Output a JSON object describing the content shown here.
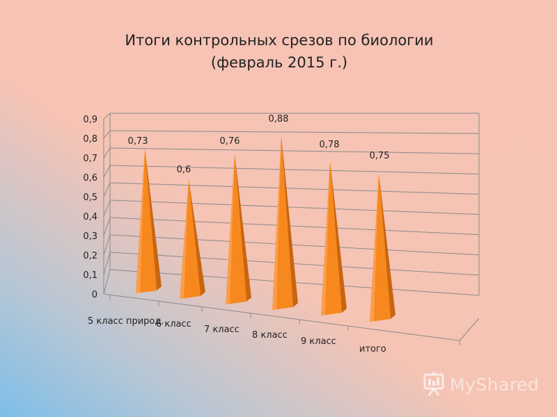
{
  "chart_data": {
    "type": "bar",
    "title": "Итоги контрольных срезов по  биологии",
    "subtitle": "(февраль 2015 г.)",
    "categories": [
      "5 класс природ.",
      "6 класс",
      "7 класс",
      "8 класс",
      "9 класс",
      "итого"
    ],
    "values": [
      0.73,
      0.6,
      0.76,
      0.88,
      0.78,
      0.75
    ],
    "data_labels": [
      "0,73",
      "0,6",
      "0,76",
      "0,88",
      "0,78",
      "0,75"
    ],
    "y_ticks": [
      "0",
      "0,1",
      "0,2",
      "0,3",
      "0,4",
      "0,5",
      "0,6",
      "0,7",
      "0,8",
      "0,9"
    ],
    "ylim": [
      0,
      0.9
    ],
    "grid": true,
    "legend": "none",
    "shape": "3d-pyramid",
    "bar_color": "#f7881e",
    "bar_side_color": "#c9650e",
    "bar_light_color": "#ffb070"
  },
  "watermark": {
    "text": "MyShared",
    "icon": "presentation-board-icon"
  }
}
